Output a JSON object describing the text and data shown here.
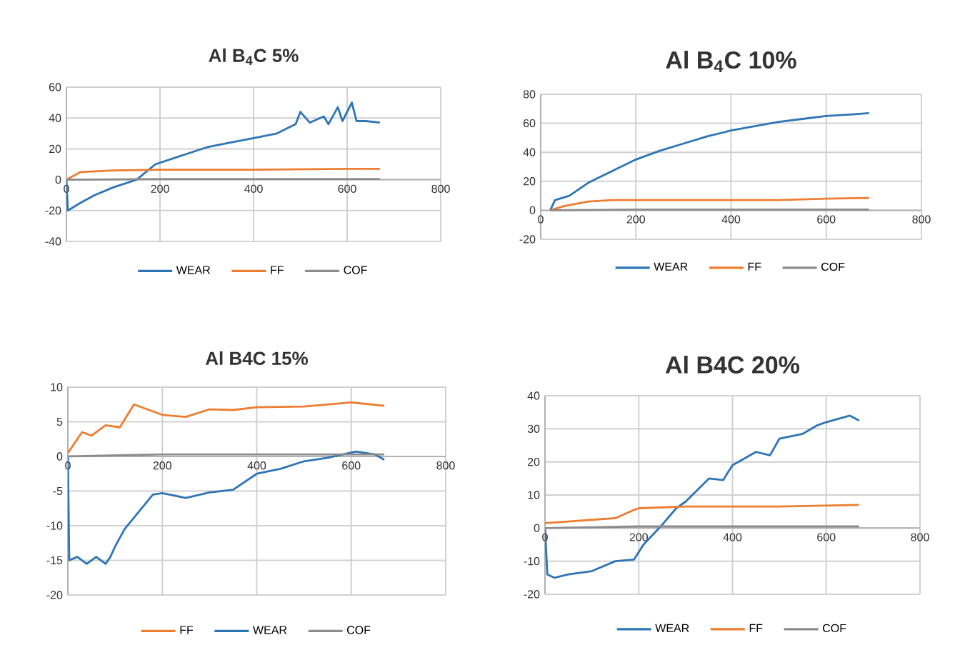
{
  "chart_data": [
    {
      "type": "line",
      "title": "Al B$_{4}$C 5%",
      "xlim": [
        0,
        800
      ],
      "ylim": [
        -40,
        60
      ],
      "xticks": [
        0,
        200,
        400,
        600,
        800
      ],
      "yticks": [
        -40,
        -20,
        0,
        20,
        40,
        60
      ],
      "grid": true,
      "legend": "bottom",
      "series": [
        {
          "name": "WEAR",
          "color": "#2e75b6",
          "x": [
            0,
            3,
            30,
            60,
            100,
            150,
            190,
            250,
            300,
            350,
            400,
            450,
            490,
            500,
            520,
            550,
            560,
            580,
            590,
            610,
            620,
            640,
            670
          ],
          "values": [
            0,
            -20,
            -15,
            -10,
            -5,
            0,
            10,
            16,
            21,
            24,
            27,
            30,
            36,
            44,
            37,
            41,
            36,
            47,
            38,
            50,
            38,
            38,
            37
          ]
        },
        {
          "name": "FF",
          "color": "#ed7d31",
          "x": [
            0,
            30,
            100,
            200,
            400,
            600,
            670
          ],
          "values": [
            0,
            5,
            6,
            6.5,
            6.5,
            7,
            7
          ]
        },
        {
          "name": "COF",
          "color": "#8c8c8c",
          "x": [
            0,
            200,
            400,
            670
          ],
          "values": [
            0,
            0.4,
            0.4,
            0.4
          ]
        }
      ]
    },
    {
      "type": "line",
      "title": "Al B$_{4}$C 10%",
      "xlim": [
        0,
        800
      ],
      "ylim": [
        -20,
        80
      ],
      "xticks": [
        0,
        200,
        400,
        600,
        800
      ],
      "yticks": [
        -20,
        0,
        20,
        40,
        60,
        80
      ],
      "grid": true,
      "legend": "bottom",
      "series": [
        {
          "name": "WEAR",
          "color": "#2e75b6",
          "x": [
            20,
            30,
            60,
            100,
            150,
            200,
            250,
            300,
            350,
            400,
            450,
            500,
            550,
            600,
            650,
            690
          ],
          "values": [
            0,
            7,
            10,
            19,
            27,
            35,
            41,
            46,
            51,
            55,
            58,
            61,
            63,
            65,
            66,
            67
          ]
        },
        {
          "name": "FF",
          "color": "#ed7d31",
          "x": [
            20,
            50,
            100,
            150,
            300,
            500,
            600,
            690
          ],
          "values": [
            0,
            3,
            6,
            7,
            7,
            7,
            8,
            8.5
          ]
        },
        {
          "name": "COF",
          "color": "#8c8c8c",
          "x": [
            20,
            200,
            400,
            690
          ],
          "values": [
            0,
            0.5,
            0.5,
            0.5
          ]
        }
      ]
    },
    {
      "type": "line",
      "title": "Al B4C 15%",
      "xlim": [
        0,
        800
      ],
      "ylim": [
        -20,
        10
      ],
      "xticks": [
        0,
        200,
        400,
        600,
        800
      ],
      "yticks": [
        -20,
        -15,
        -10,
        -5,
        0,
        5,
        10
      ],
      "grid": true,
      "legend": "bottom",
      "series": [
        {
          "name": "FF",
          "color": "#ed7d31",
          "x": [
            0,
            10,
            30,
            50,
            80,
            110,
            140,
            200,
            250,
            300,
            350,
            400,
            500,
            600,
            670
          ],
          "values": [
            0.5,
            1.5,
            3.5,
            3,
            4.5,
            4.2,
            7.5,
            6,
            5.7,
            6.8,
            6.7,
            7.1,
            7.2,
            7.8,
            7.3
          ]
        },
        {
          "name": "WEAR",
          "color": "#2e75b6",
          "x": [
            0,
            3,
            20,
            40,
            60,
            80,
            90,
            100,
            120,
            150,
            180,
            200,
            250,
            300,
            350,
            400,
            450,
            500,
            550,
            610,
            650,
            670
          ],
          "values": [
            0,
            -15,
            -14.5,
            -15.5,
            -14.5,
            -15.5,
            -14.5,
            -13,
            -10.5,
            -8,
            -5.5,
            -5.3,
            -6,
            -5.2,
            -4.8,
            -2.5,
            -1.8,
            -0.7,
            -0.2,
            0.7,
            0.3,
            -0.5
          ]
        },
        {
          "name": "COF",
          "color": "#8c8c8c",
          "x": [
            0,
            200,
            400,
            670
          ],
          "values": [
            0,
            0.3,
            0.3,
            0.3
          ]
        }
      ]
    },
    {
      "type": "line",
      "title": "Al B4C 20%",
      "xlim": [
        0,
        800
      ],
      "ylim": [
        -20,
        40
      ],
      "xticks": [
        0,
        200,
        400,
        600,
        800
      ],
      "yticks": [
        -20,
        -10,
        0,
        10,
        20,
        30,
        40
      ],
      "grid": true,
      "legend": "bottom",
      "series": [
        {
          "name": "WEAR",
          "color": "#2e75b6",
          "x": [
            0,
            5,
            20,
            50,
            100,
            150,
            190,
            210,
            250,
            280,
            300,
            350,
            380,
            400,
            450,
            480,
            500,
            550,
            580,
            600,
            650,
            670
          ],
          "values": [
            0,
            -14,
            -15,
            -14,
            -13,
            -10,
            -9.5,
            -5,
            1,
            6,
            8,
            15,
            14.5,
            19,
            23,
            22,
            27,
            28.5,
            31,
            32,
            34,
            32.5
          ]
        },
        {
          "name": "FF",
          "color": "#ed7d31",
          "x": [
            0,
            50,
            100,
            150,
            190,
            200,
            300,
            400,
            500,
            670
          ],
          "values": [
            1.5,
            2,
            2.5,
            3,
            5.5,
            6,
            6.5,
            6.5,
            6.5,
            7
          ]
        },
        {
          "name": "COF",
          "color": "#8c8c8c",
          "x": [
            0,
            200,
            400,
            670
          ],
          "values": [
            0,
            0.5,
            0.5,
            0.5
          ]
        }
      ]
    }
  ]
}
